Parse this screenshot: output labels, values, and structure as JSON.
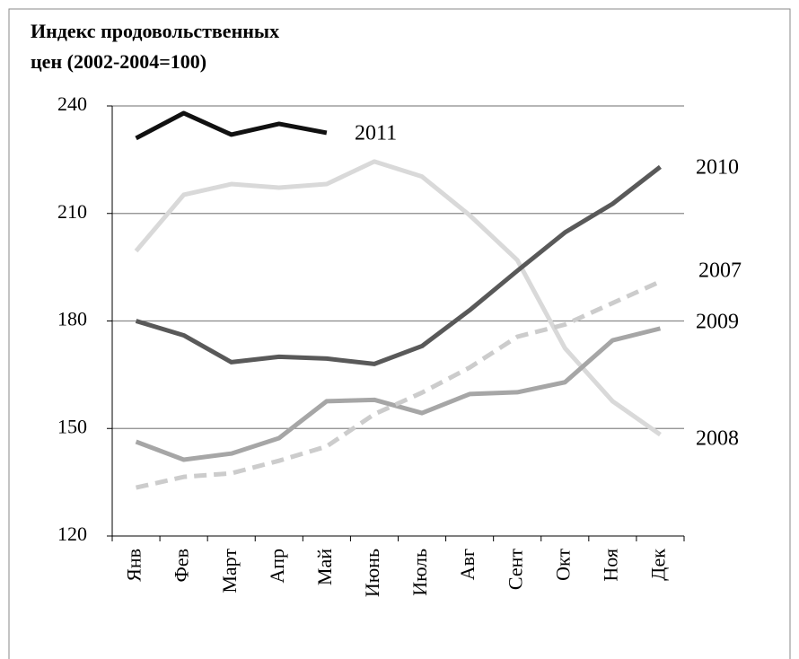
{
  "chart_data": {
    "type": "line",
    "title": [
      "Индекс продовольственных",
      "цен  (2002-2004=100)"
    ],
    "categories": [
      "Янв",
      "Фев",
      "Март",
      "Апр",
      "Май",
      "Июнь",
      "Июль",
      "Авг",
      "Сент",
      "Окт",
      "Ноя",
      "Дек"
    ],
    "series": [
      {
        "name": "2011",
        "color": "#111111",
        "dashed": false,
        "values": [
          231,
          238,
          232,
          235,
          232.5,
          null,
          null,
          null,
          null,
          null,
          null,
          null
        ]
      },
      {
        "name": "2010",
        "color": "#595959",
        "dashed": false,
        "values": [
          180,
          176,
          168.5,
          170,
          169.5,
          168,
          173,
          183,
          194,
          204.7,
          212.7,
          223
        ]
      },
      {
        "name": "2007",
        "color": "#cccccc",
        "dashed": true,
        "values": [
          133.5,
          136.5,
          137.5,
          141,
          145,
          154,
          160,
          167,
          175.6,
          179,
          185,
          191
        ]
      },
      {
        "name": "2009",
        "color": "#a6a6a6",
        "dashed": false,
        "values": [
          146.3,
          141.3,
          143,
          147.3,
          157.6,
          158,
          154.3,
          159.6,
          160.1,
          162.9,
          174.6,
          177.9
        ]
      },
      {
        "name": "2008",
        "color": "#d9d9d9",
        "dashed": false,
        "values": [
          199.5,
          215.2,
          218.2,
          217.2,
          218.2,
          224.5,
          220.3,
          209.5,
          197,
          172.4,
          157.6,
          148.3
        ]
      }
    ],
    "ylim": [
      120,
      240
    ],
    "yticks": [
      120,
      150,
      180,
      210,
      240
    ],
    "grid": true
  }
}
